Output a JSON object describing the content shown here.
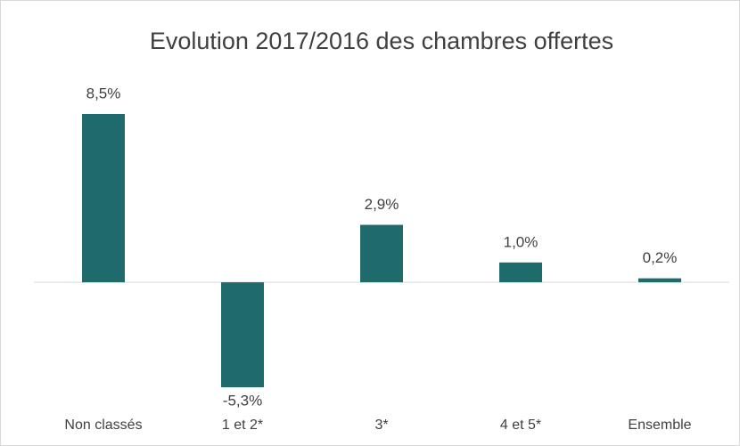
{
  "chart_data": {
    "type": "bar",
    "title": "Evolution 2017/2016  des chambres offertes",
    "categories": [
      "Non classés",
      "1 et 2*",
      "3*",
      "4 et 5*",
      "Ensemble"
    ],
    "values": [
      8.5,
      -5.3,
      2.9,
      1.0,
      0.2
    ],
    "value_labels": [
      "8,5%",
      "-5,3%",
      "2,9%",
      "1,0%",
      "0,2%"
    ],
    "color": "#1f6b6b"
  }
}
